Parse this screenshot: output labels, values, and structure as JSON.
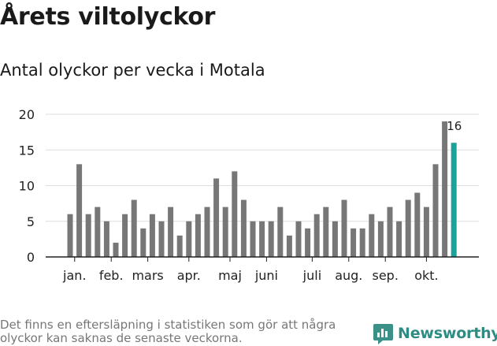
{
  "title": "Årets viltolyckor",
  "subtitle": "Antal olyckor per vecka i Motala",
  "footnote": "Det finns en eftersläpning i statistiken som gör att några olyckor kan saknas de senaste veckorna.",
  "brand": {
    "name": "Newsworthy",
    "icon": "newsworthy-logo-icon"
  },
  "colors": {
    "bar": "#777777",
    "highlight": "#1aa39a",
    "grid": "#dddddd",
    "axis": "#222222",
    "brand": "#2e8c82"
  },
  "chart_data": {
    "type": "bar",
    "title": "",
    "xlabel": "",
    "ylabel": "",
    "ylim": [
      0,
      20
    ],
    "yticks": [
      0,
      5,
      10,
      15,
      20
    ],
    "grid": true,
    "values": [
      6,
      13,
      6,
      7,
      5,
      2,
      6,
      8,
      4,
      6,
      5,
      7,
      3,
      5,
      6,
      7,
      11,
      7,
      12,
      8,
      5,
      5,
      5,
      7,
      3,
      5,
      4,
      6,
      7,
      5,
      8,
      4,
      4,
      6,
      5,
      7,
      5,
      8,
      9,
      7,
      13,
      19,
      16
    ],
    "highlight_index": 42,
    "annotation": {
      "index": 42,
      "text": "16"
    },
    "month_labels": [
      {
        "label": "jan.",
        "index": 0.5
      },
      {
        "label": "feb.",
        "index": 4.5
      },
      {
        "label": "mars",
        "index": 8.5
      },
      {
        "label": "apr.",
        "index": 13
      },
      {
        "label": "maj",
        "index": 17.5
      },
      {
        "label": "juni",
        "index": 21.5
      },
      {
        "label": "juli",
        "index": 26.5
      },
      {
        "label": "aug.",
        "index": 30.5
      },
      {
        "label": "sep.",
        "index": 34.5
      },
      {
        "label": "okt.",
        "index": 39
      }
    ]
  }
}
